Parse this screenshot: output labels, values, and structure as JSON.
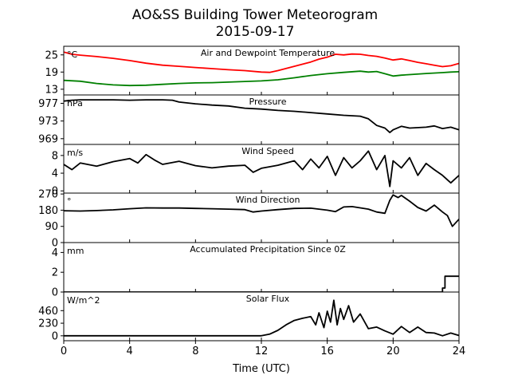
{
  "figure": {
    "title_line1": "AO&SS Building Tower Meteorogram",
    "title_line2": "2015-09-17",
    "xlabel": "Time (UTC)",
    "xlim": [
      0,
      24
    ],
    "xticks": [
      0,
      4,
      8,
      12,
      16,
      20,
      24
    ]
  },
  "chart_data": [
    {
      "type": "line",
      "title": "Air and Dewpoint Temperature",
      "unit": "°C",
      "ylim": [
        11,
        28
      ],
      "yticks": [
        13,
        19,
        25
      ],
      "series": [
        {
          "color": "#ff0000",
          "x": [
            0,
            0.5,
            1,
            2,
            3,
            4,
            5,
            6,
            7,
            8,
            9,
            10,
            11,
            12,
            12.5,
            13,
            14,
            15,
            15.5,
            16,
            16.5,
            17,
            17.5,
            18,
            18.5,
            19,
            19.5,
            20,
            20.5,
            21,
            21.5,
            22,
            22.5,
            23,
            23.5,
            24
          ],
          "y": [
            26.0,
            25.2,
            24.9,
            24.4,
            23.8,
            23.0,
            22.1,
            21.4,
            21.0,
            20.6,
            20.2,
            19.8,
            19.5,
            19.0,
            18.9,
            19.5,
            21.0,
            22.5,
            23.5,
            24.2,
            25.2,
            25.0,
            25.3,
            25.2,
            24.8,
            24.5,
            23.9,
            23.2,
            23.6,
            23.0,
            22.4,
            21.9,
            21.4,
            20.9,
            21.2,
            22.0
          ]
        },
        {
          "color": "#008000",
          "x": [
            0,
            1,
            2,
            3,
            4,
            5,
            6,
            7,
            8,
            9,
            10,
            11,
            12,
            13,
            14,
            15,
            16,
            17,
            18,
            18.5,
            19,
            19.5,
            20,
            20.5,
            21,
            22,
            23,
            23.5,
            24
          ],
          "y": [
            16.1,
            15.8,
            15.0,
            14.5,
            14.3,
            14.4,
            14.7,
            15.0,
            15.2,
            15.3,
            15.5,
            15.7,
            15.9,
            16.3,
            17.0,
            17.8,
            18.4,
            18.9,
            19.3,
            19.0,
            19.2,
            18.4,
            17.6,
            17.9,
            18.1,
            18.5,
            18.8,
            19.0,
            19.1
          ]
        }
      ]
    },
    {
      "type": "line",
      "title": "Pressure",
      "unit": "hPa",
      "ylim": [
        967.7,
        978.9
      ],
      "yticks": [
        969,
        973,
        977
      ],
      "series": [
        {
          "color": "#000000",
          "x": [
            0,
            0.5,
            1,
            2,
            3,
            4,
            5,
            6,
            6.6,
            7,
            8,
            9,
            10,
            11,
            12,
            13,
            14,
            15,
            16,
            17,
            18,
            18.5,
            19,
            19.5,
            19.8,
            20,
            20.5,
            21,
            22,
            22.5,
            23,
            23.5,
            24
          ],
          "y": [
            977.5,
            977.7,
            977.8,
            977.8,
            977.8,
            977.7,
            977.8,
            977.8,
            977.7,
            977.3,
            976.9,
            976.6,
            976.4,
            975.9,
            975.7,
            975.4,
            975.2,
            974.9,
            974.6,
            974.3,
            974.1,
            973.5,
            972.0,
            971.4,
            970.4,
            971.0,
            971.8,
            971.4,
            971.6,
            971.9,
            971.3,
            971.6,
            971.0
          ]
        }
      ]
    },
    {
      "type": "line",
      "title": "Wind Speed",
      "unit": "m/s",
      "ylim": [
        -0.5,
        10.5
      ],
      "yticks": [
        0,
        4,
        8
      ],
      "series": [
        {
          "color": "#000000",
          "x": [
            0,
            0.5,
            1,
            2,
            3,
            4,
            4.5,
            5,
            5.5,
            6,
            7,
            8,
            9,
            10,
            11,
            11.5,
            12,
            13,
            14,
            14.5,
            15,
            15.5,
            16,
            16.5,
            17,
            17.5,
            18,
            18.5,
            19,
            19.5,
            19.8,
            20,
            20.5,
            21,
            21.5,
            22,
            22.5,
            23,
            23.5,
            24
          ],
          "y": [
            6.0,
            4.8,
            6.3,
            5.6,
            6.6,
            7.3,
            6.3,
            8.2,
            7.0,
            6.0,
            6.7,
            5.7,
            5.2,
            5.6,
            5.8,
            4.2,
            5.1,
            5.8,
            6.8,
            4.8,
            7.2,
            5.2,
            7.8,
            3.5,
            7.5,
            5.2,
            6.8,
            9.0,
            4.8,
            8.0,
            1.0,
            6.8,
            5.2,
            7.5,
            3.5,
            6.2,
            4.8,
            3.5,
            1.8,
            3.5
          ]
        }
      ]
    },
    {
      "type": "line",
      "title": "Wind Direction",
      "unit": "°",
      "ylim": [
        0,
        275
      ],
      "yticks": [
        0,
        90,
        180,
        270
      ],
      "series": [
        {
          "color": "#000000",
          "x": [
            0,
            1,
            2,
            3,
            4,
            5,
            6,
            7,
            8,
            9,
            10,
            11,
            11.5,
            12,
            13,
            14,
            15,
            16,
            16.5,
            17,
            17.5,
            18,
            18.5,
            19,
            19.5,
            19.8,
            20,
            20.3,
            20.5,
            21,
            21.5,
            22,
            22.5,
            23,
            23.3,
            23.6,
            24
          ],
          "y": [
            177,
            175,
            178,
            182,
            188,
            193,
            192,
            192,
            190,
            188,
            186,
            183,
            170,
            175,
            183,
            190,
            191,
            180,
            172,
            198,
            200,
            193,
            186,
            170,
            163,
            235,
            265,
            250,
            262,
            230,
            195,
            175,
            208,
            170,
            150,
            90,
            130
          ]
        }
      ]
    },
    {
      "type": "line",
      "title": "Accumulated Precipitation Since 0Z",
      "unit": "mm",
      "ylim": [
        0,
        5
      ],
      "yticks": [
        0,
        2,
        4
      ],
      "series": [
        {
          "color": "#000000",
          "x": [
            0,
            23.0,
            23.0,
            23.15,
            23.15,
            24
          ],
          "y": [
            0,
            0,
            0.4,
            0.4,
            1.6,
            1.6
          ]
        }
      ]
    },
    {
      "type": "line",
      "title": "Solar Flux",
      "unit": "W/m^2",
      "ylim": [
        -90,
        800
      ],
      "yticks": [
        0,
        230,
        460
      ],
      "series": [
        {
          "color": "#000000",
          "x": [
            0,
            2,
            4,
            6,
            8,
            10,
            11,
            12,
            12.5,
            13,
            13.5,
            14,
            14.5,
            15,
            15.3,
            15.5,
            15.8,
            16,
            16.2,
            16.4,
            16.6,
            16.8,
            17,
            17.3,
            17.6,
            18,
            18.5,
            19,
            19.5,
            20,
            20.5,
            21,
            21.5,
            22,
            22.5,
            23,
            23.5,
            24
          ],
          "y": [
            0,
            0,
            0,
            0,
            0,
            0,
            0,
            0,
            30,
            100,
            200,
            280,
            320,
            350,
            200,
            420,
            150,
            450,
            250,
            650,
            200,
            500,
            300,
            550,
            250,
            400,
            130,
            160,
            90,
            30,
            170,
            60,
            160,
            60,
            50,
            0,
            50,
            5
          ]
        }
      ]
    }
  ]
}
